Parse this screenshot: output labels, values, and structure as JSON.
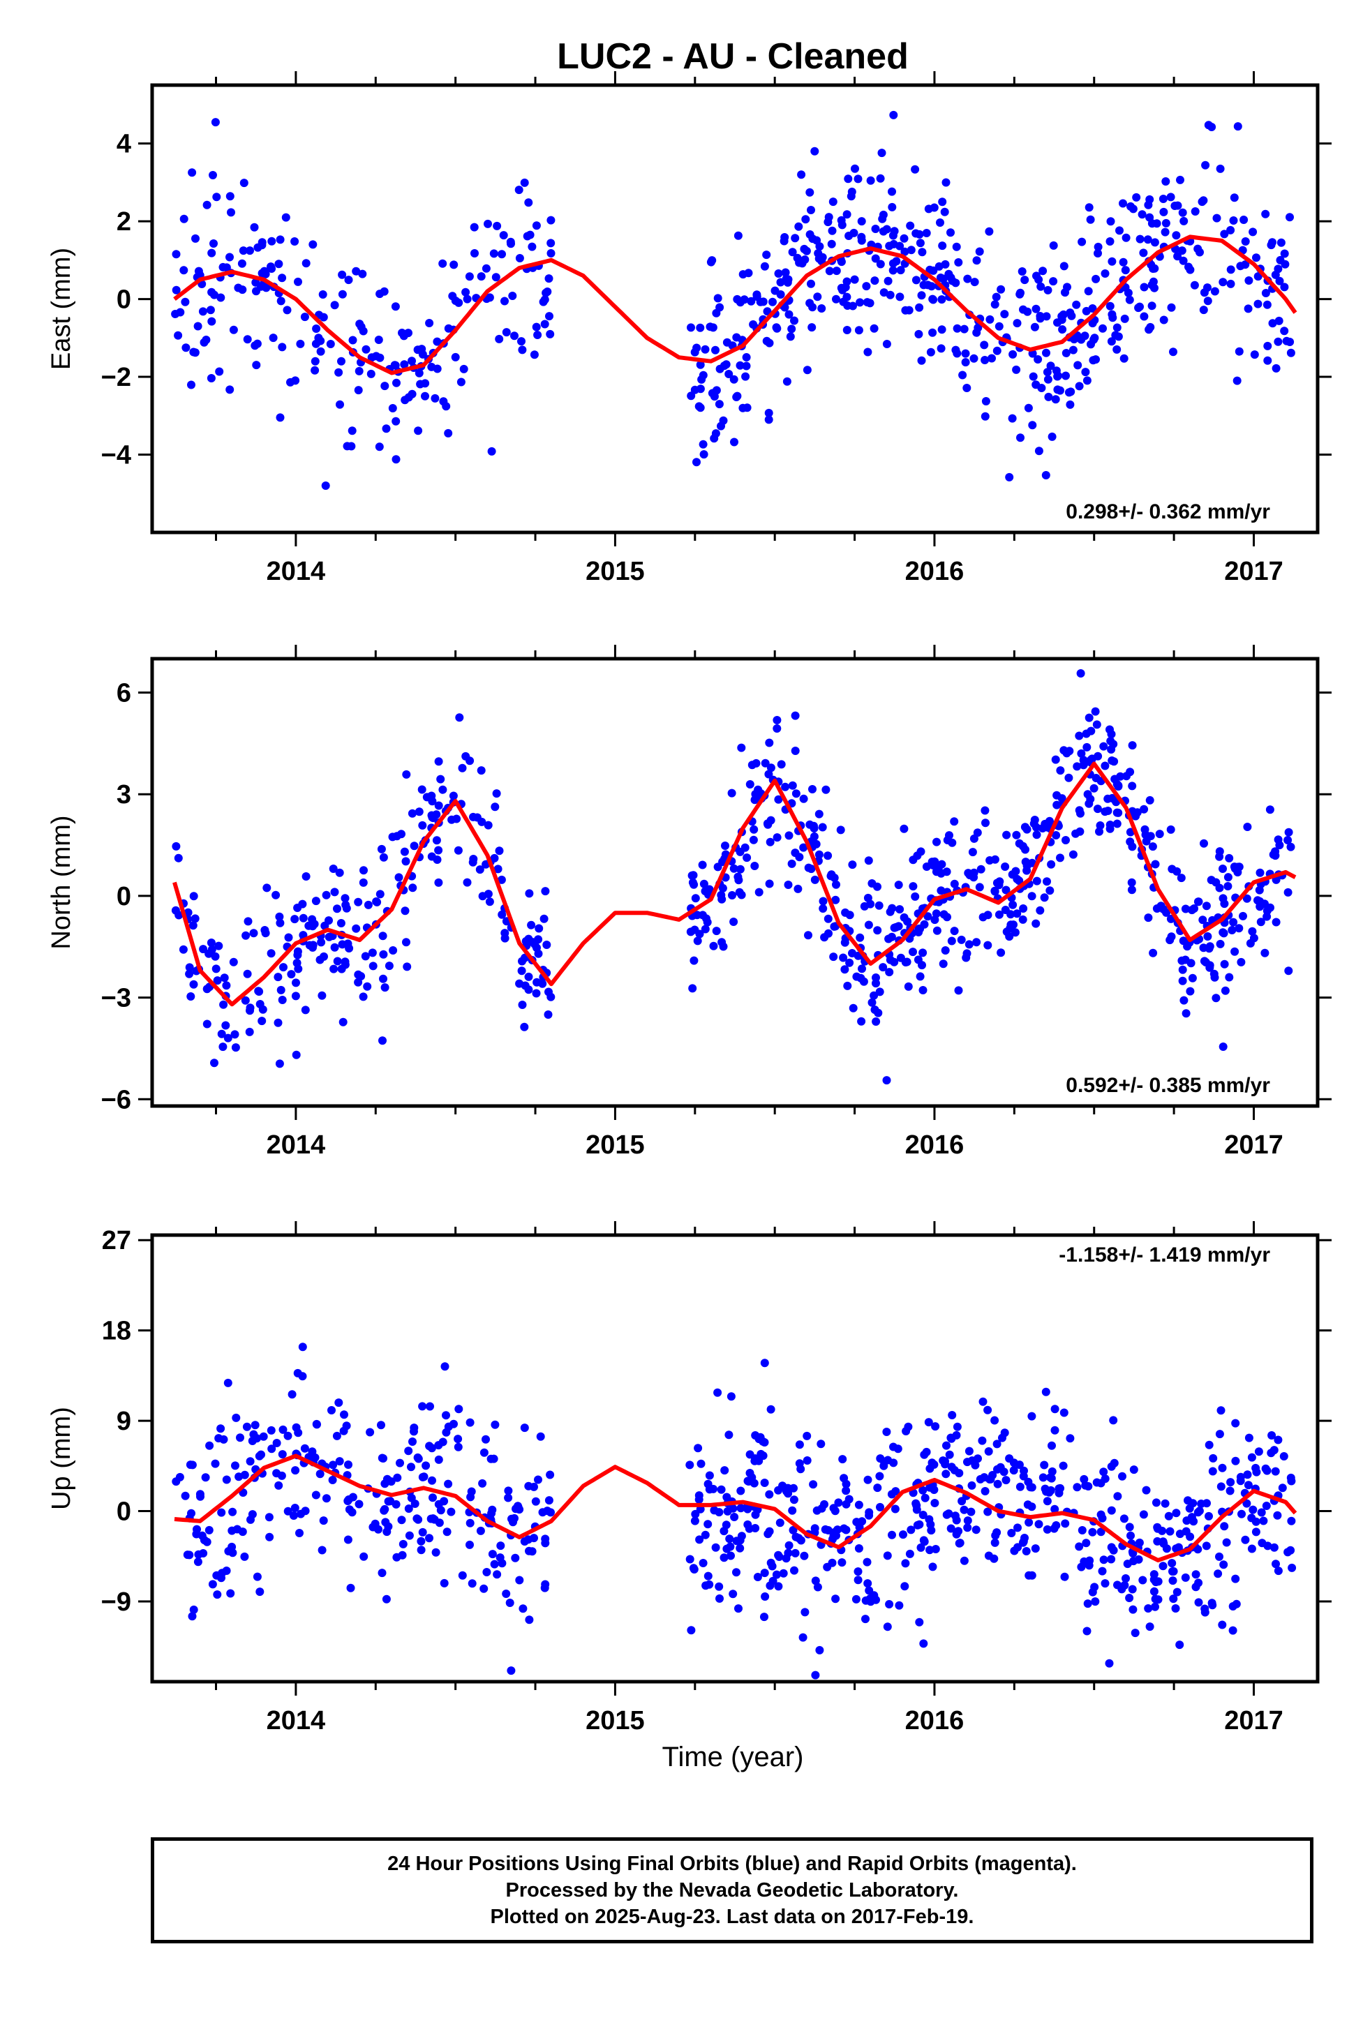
{
  "page": {
    "title": "LUC2  - AU - Cleaned"
  },
  "colors": {
    "final_orbits": "#0000ff",
    "model_fit": "#ff0000",
    "axes": "#000000"
  },
  "chart_data": [
    {
      "type": "scatter",
      "ylabel": "East (mm)",
      "ylim": [
        -6,
        5.5
      ],
      "yticks": [
        -4,
        -2,
        0,
        2,
        4
      ],
      "xlim": [
        2013.55,
        2017.2
      ],
      "xticks": [
        2014,
        2015,
        2016,
        2017
      ],
      "rate_label": "0.298+/- 0.362 mm/yr",
      "grid": false,
      "series": [
        {
          "kind": "scatter",
          "segments": [
            {
              "from": 2013.62,
              "to": 2014.8,
              "points": 230
            },
            {
              "from": 2015.23,
              "to": 2017.12,
              "points": 520
            }
          ],
          "spread": 1.2,
          "trend": 0.298
        },
        {
          "kind": "line",
          "x": [
            2013.62,
            2013.7,
            2013.8,
            2013.9,
            2014.0,
            2014.1,
            2014.2,
            2014.3,
            2014.4,
            2014.5,
            2014.6,
            2014.7,
            2014.8,
            2014.9,
            2015.0,
            2015.1,
            2015.2,
            2015.3,
            2015.4,
            2015.5,
            2015.6,
            2015.7,
            2015.8,
            2015.9,
            2016.0,
            2016.1,
            2016.2,
            2016.3,
            2016.4,
            2016.5,
            2016.6,
            2016.7,
            2016.8,
            2016.9,
            2017.0,
            2017.1,
            2017.13
          ],
          "y": [
            0.0,
            0.5,
            0.7,
            0.5,
            0.0,
            -0.8,
            -1.5,
            -1.9,
            -1.7,
            -0.8,
            0.2,
            0.8,
            1.0,
            0.6,
            -0.2,
            -1.0,
            -1.5,
            -1.6,
            -1.2,
            -0.3,
            0.6,
            1.1,
            1.3,
            1.1,
            0.5,
            -0.3,
            -1.0,
            -1.3,
            -1.1,
            -0.4,
            0.5,
            1.2,
            1.6,
            1.5,
            0.9,
            0.0,
            -0.35
          ]
        }
      ]
    },
    {
      "type": "scatter",
      "ylabel": "North (mm)",
      "ylim": [
        -6.2,
        7
      ],
      "yticks": [
        -6,
        -3,
        0,
        3,
        6
      ],
      "xlim": [
        2013.55,
        2017.2
      ],
      "xticks": [
        2014,
        2015,
        2016,
        2017
      ],
      "rate_label": "0.592+/- 0.385 mm/yr",
      "grid": false,
      "series": [
        {
          "kind": "scatter",
          "segments": [
            {
              "from": 2013.62,
              "to": 2014.8,
              "points": 260
            },
            {
              "from": 2015.23,
              "to": 2017.12,
              "points": 560
            }
          ],
          "spread": 1.2,
          "trend": 0.592
        },
        {
          "kind": "line",
          "x": [
            2013.62,
            2013.7,
            2013.8,
            2013.9,
            2014.0,
            2014.1,
            2014.2,
            2014.3,
            2014.4,
            2014.5,
            2014.6,
            2014.7,
            2014.8,
            2014.9,
            2015.0,
            2015.1,
            2015.2,
            2015.3,
            2015.4,
            2015.5,
            2015.6,
            2015.7,
            2015.8,
            2015.9,
            2016.0,
            2016.1,
            2016.2,
            2016.3,
            2016.4,
            2016.5,
            2016.6,
            2016.7,
            2016.8,
            2016.9,
            2017.0,
            2017.1,
            2017.13
          ],
          "y": [
            0.4,
            -2.2,
            -3.2,
            -2.4,
            -1.4,
            -1.0,
            -1.3,
            -0.4,
            1.6,
            2.8,
            1.2,
            -1.4,
            -2.6,
            -1.4,
            -0.5,
            -0.5,
            -0.7,
            -0.1,
            2.0,
            3.4,
            1.6,
            -0.8,
            -2.0,
            -1.3,
            -0.1,
            0.2,
            -0.2,
            0.5,
            2.6,
            3.9,
            2.6,
            0.2,
            -1.3,
            -0.7,
            0.4,
            0.7,
            0.55
          ]
        }
      ]
    },
    {
      "type": "scatter",
      "ylabel": "Up (mm)",
      "ylim": [
        -17,
        27.5
      ],
      "yticks": [
        -9,
        0,
        9,
        18,
        27
      ],
      "xlim": [
        2013.55,
        2017.2
      ],
      "xticks": [
        2014,
        2015,
        2016,
        2017
      ],
      "rate_label": "-1.158+/- 1.419 mm/yr",
      "grid": false,
      "series": [
        {
          "kind": "scatter",
          "segments": [
            {
              "from": 2013.62,
              "to": 2014.8,
              "points": 280
            },
            {
              "from": 2015.23,
              "to": 2017.12,
              "points": 560
            }
          ],
          "spread": 4.8,
          "trend": -1.158
        },
        {
          "kind": "line",
          "x": [
            2013.62,
            2013.7,
            2013.8,
            2013.9,
            2014.0,
            2014.1,
            2014.2,
            2014.3,
            2014.4,
            2014.5,
            2014.6,
            2014.7,
            2014.8,
            2014.9,
            2015.0,
            2015.1,
            2015.2,
            2015.3,
            2015.4,
            2015.5,
            2015.6,
            2015.7,
            2015.8,
            2015.9,
            2016.0,
            2016.1,
            2016.2,
            2016.3,
            2016.4,
            2016.5,
            2016.6,
            2016.7,
            2016.8,
            2016.9,
            2017.0,
            2017.1,
            2017.13
          ],
          "y": [
            -0.8,
            -1.0,
            1.5,
            4.3,
            5.5,
            4.0,
            2.5,
            1.6,
            2.3,
            1.5,
            -1.0,
            -2.6,
            -1.0,
            2.5,
            4.4,
            2.8,
            0.6,
            0.6,
            0.9,
            0.2,
            -2.3,
            -3.6,
            -1.5,
            1.9,
            3.1,
            1.8,
            0.0,
            -0.6,
            -0.2,
            -0.9,
            -3.3,
            -4.9,
            -3.8,
            -0.6,
            2.0,
            0.9,
            -0.2
          ]
        }
      ]
    }
  ],
  "xaxis_label": "Time (year)",
  "footer": {
    "line1": "24 Hour Positions Using Final Orbits (blue) and Rapid Orbits (magenta).",
    "line2": "Processed by the Nevada Geodetic Laboratory.",
    "line3": "Plotted on 2025-Aug-23. Last data on 2017-Feb-19."
  }
}
